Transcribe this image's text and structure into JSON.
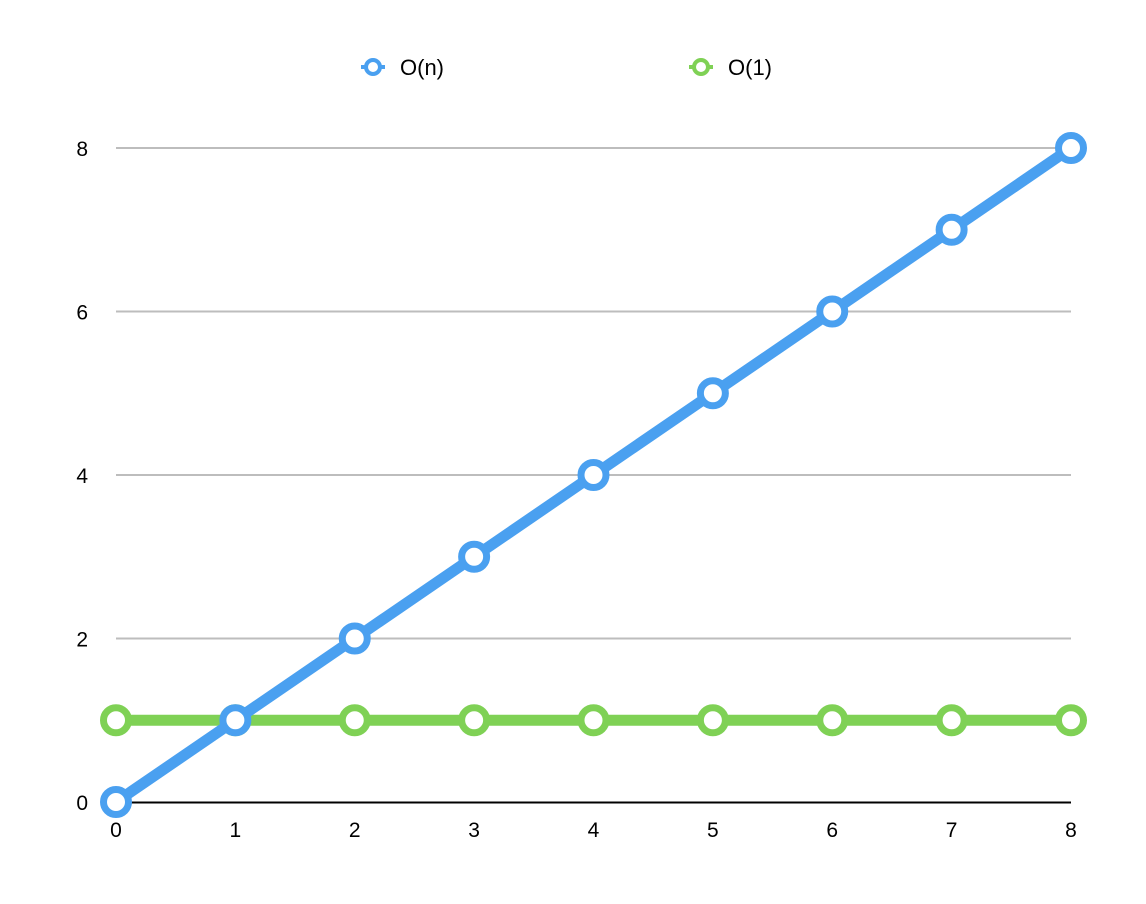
{
  "chart_data": {
    "type": "line",
    "title": "",
    "xlabel": "",
    "ylabel": "",
    "x": [
      0,
      1,
      2,
      3,
      4,
      5,
      6,
      7,
      8
    ],
    "xlim": [
      0,
      8
    ],
    "ylim": [
      0,
      8
    ],
    "x_ticks": [
      "0",
      "1",
      "2",
      "3",
      "4",
      "5",
      "6",
      "7",
      "8"
    ],
    "y_ticks": [
      "0",
      "2",
      "4",
      "6",
      "8"
    ],
    "grid": "horizontal",
    "legend_position": "top-center",
    "series": [
      {
        "name": "O(n)",
        "color": "#4aa0f0",
        "values": [
          0,
          1,
          2,
          3,
          4,
          5,
          6,
          7,
          8
        ]
      },
      {
        "name": "O(1)",
        "color": "#7fd155",
        "values": [
          1,
          1,
          1,
          1,
          1,
          1,
          1,
          1,
          1
        ]
      }
    ]
  }
}
